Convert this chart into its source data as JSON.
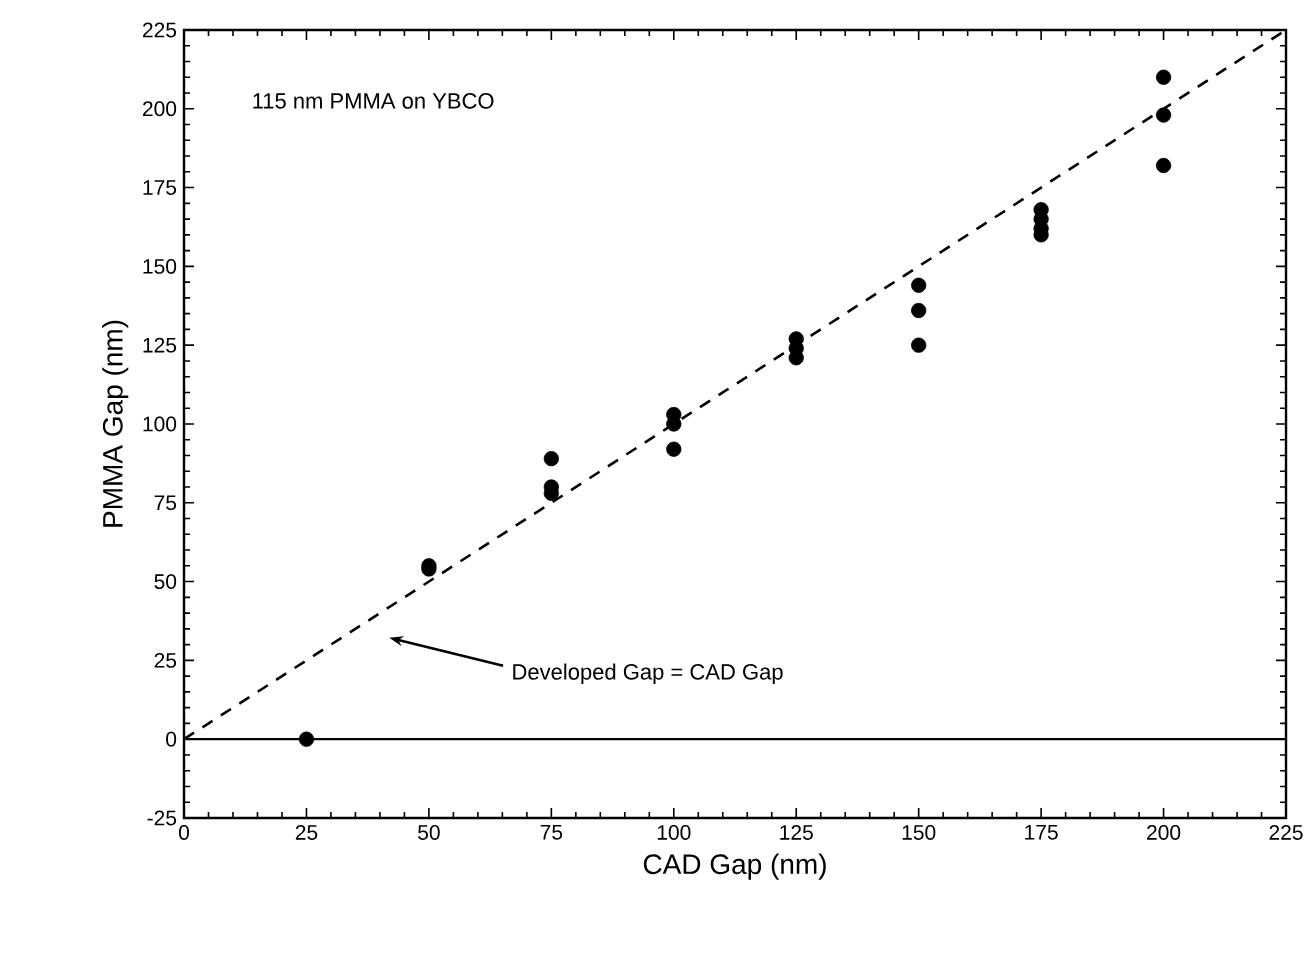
{
  "chart_data": {
    "type": "scatter",
    "xlabel": "CAD Gap (nm)",
    "ylabel": "PMMA Gap (nm)",
    "xlim": [
      0,
      225
    ],
    "ylim": [
      -25,
      225
    ],
    "xticks": [
      0,
      25,
      50,
      75,
      100,
      125,
      150,
      175,
      200,
      225
    ],
    "yticks": [
      -25,
      0,
      25,
      50,
      75,
      100,
      125,
      150,
      175,
      200,
      225
    ],
    "series": [
      {
        "color": "#000000",
        "marker": "circle",
        "x": [
          25,
          50,
          50,
          75,
          75,
          75,
          100,
          100,
          100,
          125,
          125,
          125,
          150,
          150,
          150,
          175,
          175,
          175,
          175,
          200,
          200,
          200
        ],
        "values": [
          0,
          54,
          55,
          89,
          80,
          78,
          103,
          100,
          92,
          127,
          124,
          121,
          144,
          136,
          125,
          168,
          165,
          162,
          160,
          210,
          198,
          182
        ]
      },
      {
        "type": "line",
        "color": "#000000",
        "marker": "none",
        "line_style": "dashed",
        "x": [
          0,
          225
        ],
        "values": [
          0,
          225
        ]
      }
    ],
    "ref_lines": [
      {
        "axis": "y",
        "value": 0,
        "color": "#000000",
        "line_style": "solid"
      }
    ],
    "annotations": [
      "115 nm PMMA on YBCO",
      "Developed Gap = CAD Gap"
    ]
  }
}
